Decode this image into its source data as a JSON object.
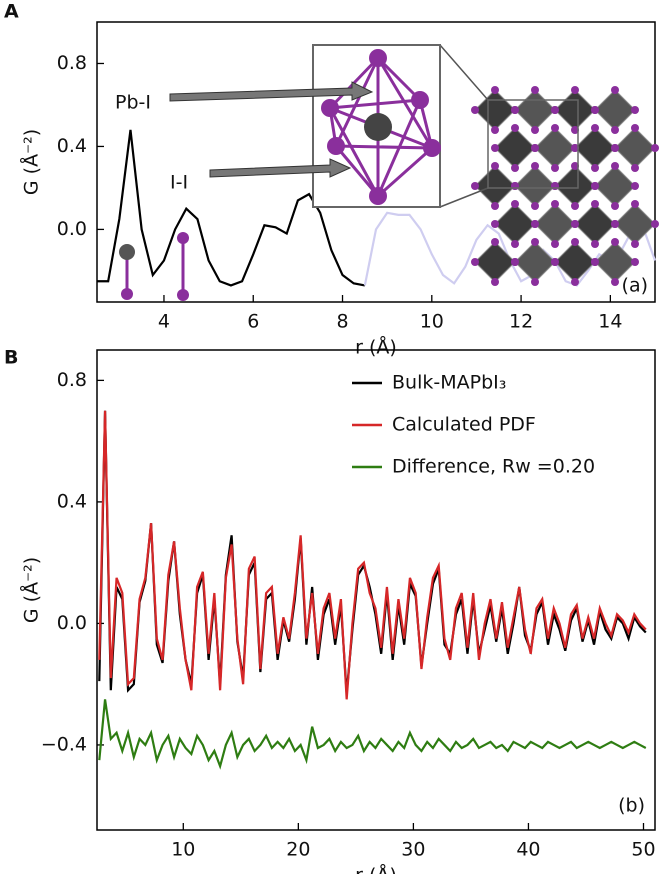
{
  "chart_data": [
    {
      "type": "line",
      "panel_label": "A",
      "xlabel": "r (Å)",
      "ylabel": "G (Å⁻²)",
      "annotations": [
        "Pb-I",
        "I-I",
        "(a)"
      ],
      "x": [
        2.5,
        2.75,
        3.0,
        3.25,
        3.5,
        3.75,
        4.0,
        4.25,
        4.5,
        4.75,
        5.0,
        5.25,
        5.5,
        5.75,
        6.0,
        6.25,
        6.5,
        6.75,
        7.0,
        7.25,
        7.5,
        7.75,
        8.0,
        8.25,
        8.5,
        8.75,
        9.0,
        9.25,
        9.5,
        9.75,
        10.0,
        10.25,
        10.5,
        10.75,
        11.0,
        11.25,
        11.5,
        11.75,
        12.0,
        12.25,
        12.5,
        12.75,
        13.0,
        13.25,
        13.5,
        13.75,
        14.0,
        14.25,
        14.5,
        14.75,
        15.0
      ],
      "series": [
        {
          "color": "#000000",
          "values": [
            -0.25,
            -0.25,
            0.05,
            0.48,
            0.0,
            -0.22,
            -0.15,
            0.0,
            0.1,
            0.05,
            -0.15,
            -0.25,
            -0.27,
            -0.25,
            -0.12,
            0.02,
            0.01,
            -0.02,
            0.14,
            0.17,
            0.08,
            -0.1,
            -0.22,
            -0.26,
            -0.27,
            null,
            null,
            null,
            null,
            null,
            null,
            null,
            null,
            null,
            null,
            null,
            null,
            null,
            null,
            null,
            null,
            null,
            null,
            null,
            null,
            null,
            null,
            null,
            null,
            null,
            null
          ]
        },
        {
          "color": "#cfcdf0",
          "values": [
            null,
            null,
            null,
            null,
            null,
            null,
            null,
            null,
            null,
            null,
            null,
            null,
            null,
            null,
            null,
            null,
            null,
            null,
            null,
            null,
            null,
            null,
            null,
            null,
            -0.27,
            0.0,
            0.08,
            0.07,
            0.07,
            0.0,
            -0.12,
            -0.22,
            -0.26,
            -0.18,
            -0.05,
            0.02,
            -0.02,
            -0.15,
            -0.25,
            -0.22,
            -0.1,
            -0.15,
            -0.25,
            -0.27,
            -0.2,
            -0.12,
            -0.15,
            -0.1,
            0.0,
            0.0,
            -0.15
          ]
        }
      ],
      "xlim": [
        2.5,
        15
      ],
      "xticks": [
        4,
        6,
        8,
        10,
        12,
        14
      ],
      "ylim": [
        -0.35,
        1.0
      ],
      "yticks": [
        0.8,
        0.4,
        {
          "value": 0,
          "label": "0.0"
        }
      ]
    },
    {
      "type": "line",
      "panel_label": "B",
      "xlabel": "r (Å)",
      "ylabel": "G (Å⁻²)",
      "annotations": [
        "(b)"
      ],
      "legend": "upper right",
      "x": [
        2.7,
        3.2,
        3.7,
        4.2,
        4.7,
        5.2,
        5.7,
        6.2,
        6.7,
        7.2,
        7.7,
        8.2,
        8.7,
        9.2,
        9.7,
        10.2,
        10.7,
        11.2,
        11.7,
        12.2,
        12.7,
        13.2,
        13.7,
        14.2,
        14.7,
        15.2,
        15.7,
        16.2,
        16.7,
        17.2,
        17.7,
        18.2,
        18.7,
        19.2,
        19.7,
        20.2,
        20.7,
        21.2,
        21.7,
        22.2,
        22.7,
        23.2,
        23.7,
        24.2,
        24.7,
        25.2,
        25.7,
        26.2,
        26.7,
        27.2,
        27.7,
        28.2,
        28.7,
        29.2,
        29.7,
        30.2,
        30.7,
        31.2,
        31.7,
        32.2,
        32.7,
        33.2,
        33.7,
        34.2,
        34.7,
        35.2,
        35.7,
        36.2,
        36.7,
        37.2,
        37.7,
        38.2,
        38.7,
        39.2,
        39.7,
        40.2,
        40.7,
        41.2,
        41.7,
        42.2,
        42.7,
        43.2,
        43.7,
        44.2,
        44.7,
        45.2,
        45.7,
        46.2,
        46.7,
        47.2,
        47.7,
        48.2,
        48.7,
        49.2,
        49.7,
        50.2
      ],
      "series": [
        {
          "name": "Bulk-MAPbI₃",
          "color": "#000000",
          "values": [
            -0.19,
            0.7,
            -0.22,
            0.12,
            0.08,
            -0.22,
            -0.2,
            0.07,
            0.14,
            0.33,
            -0.07,
            -0.13,
            0.14,
            0.27,
            0.03,
            -0.12,
            -0.2,
            0.1,
            0.16,
            -0.12,
            0.08,
            -0.2,
            0.16,
            0.29,
            -0.06,
            -0.18,
            0.16,
            0.2,
            -0.16,
            0.08,
            0.1,
            -0.12,
            0.01,
            -0.06,
            0.08,
            0.28,
            -0.07,
            0.12,
            -0.12,
            0.03,
            0.08,
            -0.07,
            0.06,
            -0.23,
            -0.02,
            0.16,
            0.19,
            0.12,
            0.03,
            -0.1,
            0.1,
            -0.12,
            0.06,
            -0.07,
            0.13,
            0.09,
            -0.14,
            0.0,
            0.13,
            0.18,
            -0.07,
            -0.1,
            0.03,
            0.08,
            -0.1,
            0.08,
            -0.1,
            -0.02,
            0.06,
            -0.06,
            0.05,
            -0.1,
            0.0,
            0.12,
            -0.04,
            -0.09,
            0.03,
            0.07,
            -0.07,
            0.03,
            -0.02,
            -0.09,
            0.01,
            0.05,
            -0.06,
            0.01,
            -0.07,
            0.04,
            -0.02,
            -0.05,
            0.02,
            0.0,
            -0.05,
            0.02,
            -0.01,
            -0.03
          ]
        },
        {
          "name": "Calculated PDF",
          "color": "#d62728",
          "values": [
            -0.12,
            0.7,
            -0.18,
            0.15,
            0.1,
            -0.2,
            -0.18,
            0.08,
            0.15,
            0.33,
            -0.05,
            -0.12,
            0.16,
            0.27,
            0.05,
            -0.12,
            -0.22,
            0.12,
            0.17,
            -0.1,
            0.1,
            -0.22,
            0.15,
            0.26,
            -0.05,
            -0.2,
            0.18,
            0.22,
            -0.15,
            0.1,
            0.12,
            -0.1,
            0.02,
            -0.05,
            0.1,
            0.29,
            -0.05,
            0.1,
            -0.1,
            0.05,
            0.1,
            -0.05,
            0.08,
            -0.25,
            0.0,
            0.18,
            0.2,
            0.1,
            0.05,
            -0.08,
            0.12,
            -0.1,
            0.08,
            -0.05,
            0.15,
            0.1,
            -0.15,
            0.02,
            0.15,
            0.19,
            -0.05,
            -0.12,
            0.05,
            0.1,
            -0.08,
            0.1,
            -0.12,
            0.0,
            0.08,
            -0.05,
            0.07,
            -0.08,
            0.02,
            0.12,
            -0.02,
            -0.1,
            0.05,
            0.08,
            -0.05,
            0.05,
            0.0,
            -0.08,
            0.03,
            0.06,
            -0.05,
            0.02,
            -0.05,
            0.05,
            0.0,
            -0.04,
            0.03,
            0.01,
            -0.03,
            0.03,
            0.0,
            -0.02
          ]
        },
        {
          "name": "Difference, Rw =0.20",
          "color": "#2e7d12",
          "values": [
            -0.45,
            -0.25,
            -0.38,
            -0.36,
            -0.42,
            -0.36,
            -0.44,
            -0.38,
            -0.4,
            -0.36,
            -0.45,
            -0.4,
            -0.37,
            -0.44,
            -0.38,
            -0.41,
            -0.43,
            -0.37,
            -0.4,
            -0.45,
            -0.42,
            -0.47,
            -0.4,
            -0.36,
            -0.44,
            -0.4,
            -0.38,
            -0.42,
            -0.4,
            -0.37,
            -0.41,
            -0.39,
            -0.41,
            -0.38,
            -0.42,
            -0.4,
            -0.45,
            -0.34,
            -0.41,
            -0.4,
            -0.38,
            -0.42,
            -0.39,
            -0.41,
            -0.4,
            -0.37,
            -0.42,
            -0.39,
            -0.41,
            -0.38,
            -0.4,
            -0.42,
            -0.39,
            -0.41,
            -0.36,
            -0.4,
            -0.42,
            -0.39,
            -0.41,
            -0.38,
            -0.4,
            -0.42,
            -0.39,
            -0.41,
            -0.4,
            -0.38,
            -0.41,
            -0.4,
            -0.39,
            -0.41,
            -0.4,
            -0.42,
            -0.39,
            -0.4,
            -0.41,
            -0.39,
            -0.4,
            -0.41,
            -0.39,
            -0.4,
            -0.41,
            -0.4,
            -0.39,
            -0.41,
            -0.4,
            -0.39,
            -0.4,
            -0.41,
            -0.4,
            -0.39,
            -0.4,
            -0.41,
            -0.4,
            -0.39,
            -0.4,
            -0.41
          ]
        }
      ],
      "xlim": [
        2.5,
        51
      ],
      "xticks": [
        10,
        20,
        30,
        40,
        50
      ],
      "ylim": [
        -0.68,
        0.9
      ],
      "yticks": [
        0.8,
        0.4,
        {
          "value": 0,
          "label": "0.0"
        },
        {
          "value": -0.4,
          "label": "−0.4"
        }
      ]
    }
  ]
}
